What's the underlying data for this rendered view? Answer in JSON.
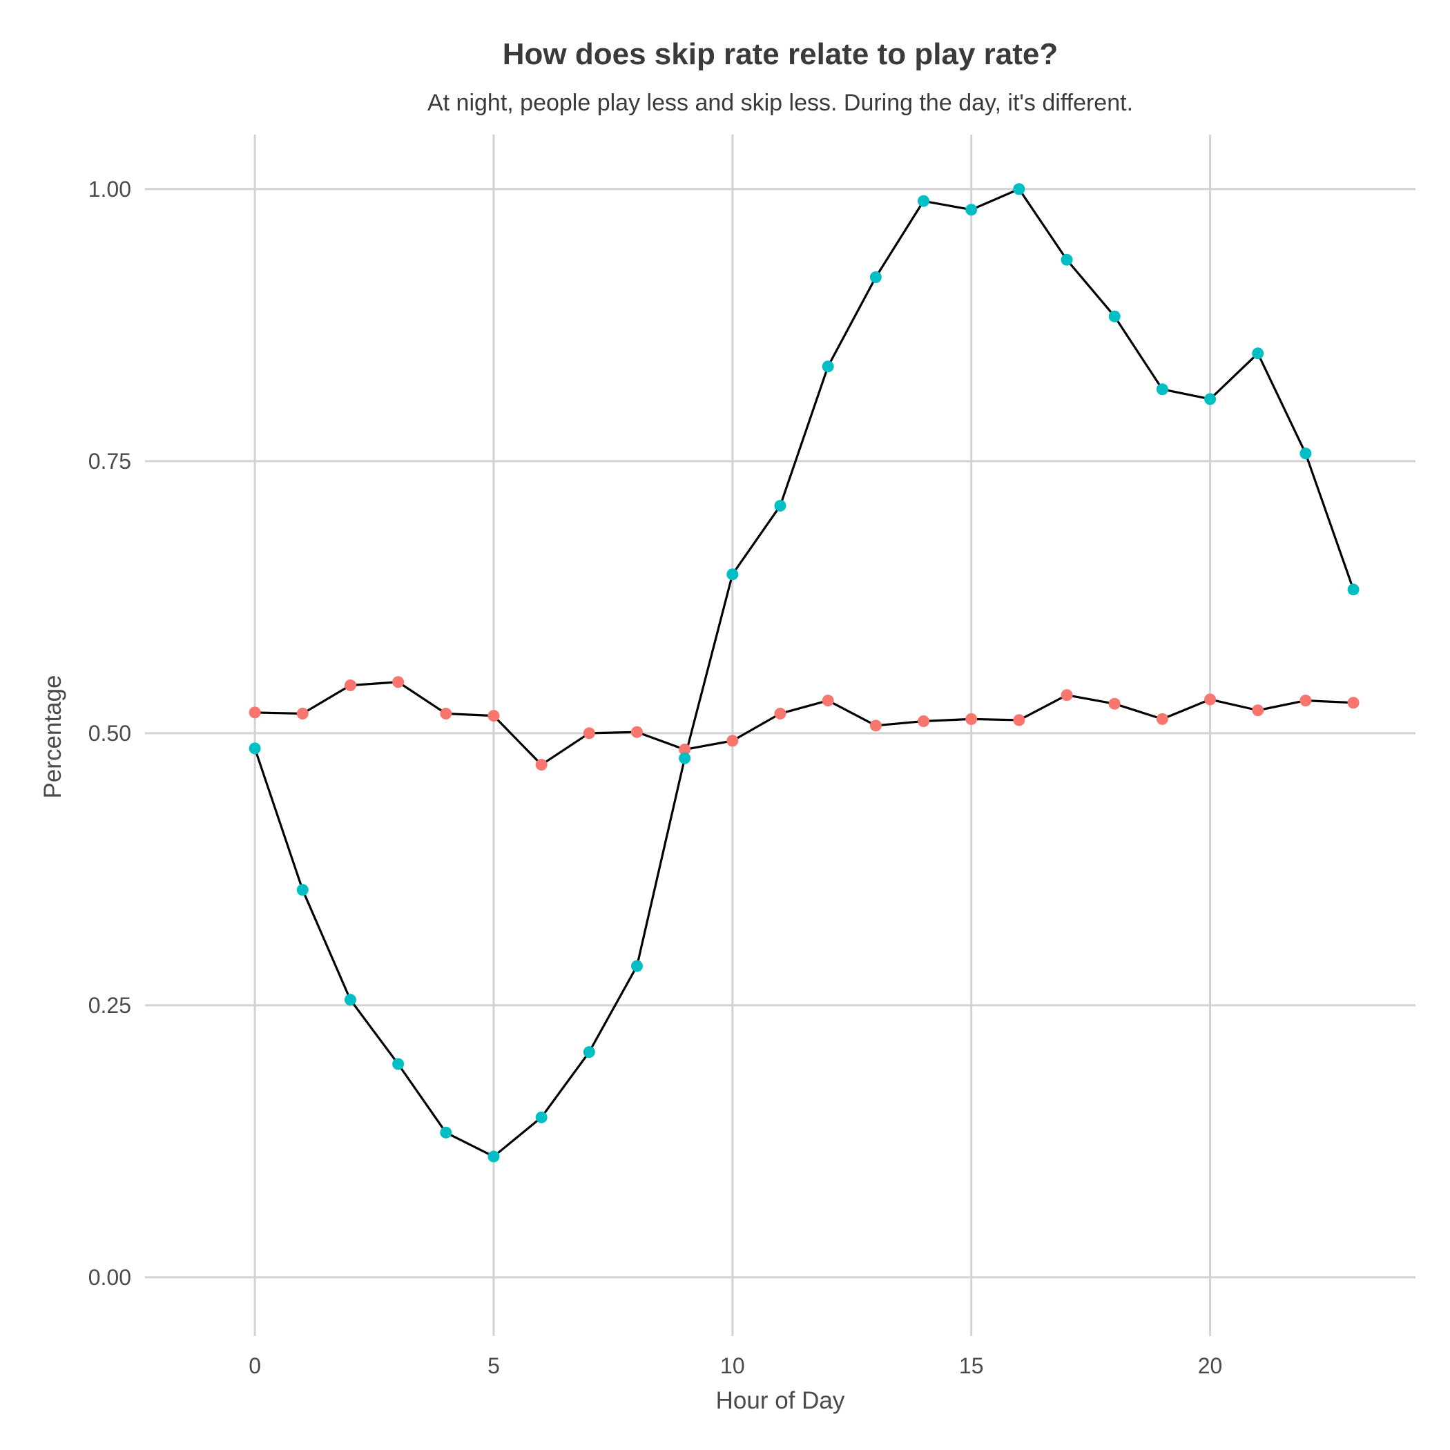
{
  "chart_data": {
    "type": "line",
    "title": "How does skip rate relate to play rate?",
    "subtitle": "At night, people play less and skip less. During the day, it's different.",
    "xlabel": "Hour of Day",
    "ylabel": "Percentage",
    "xlim": [
      -2.3,
      24.3
    ],
    "ylim": [
      -0.054,
      1.05
    ],
    "x_ticks": [
      0,
      5,
      10,
      15,
      20
    ],
    "x_tick_labels": [
      "0",
      "5",
      "10",
      "15",
      "20"
    ],
    "y_ticks": [
      0,
      0.25,
      0.5,
      0.75,
      1.0
    ],
    "y_tick_labels": [
      "0.00",
      "0.25",
      "0.50",
      "0.75",
      "1.00"
    ],
    "grid": true,
    "legend": "none",
    "x": [
      0,
      1,
      2,
      3,
      4,
      5,
      6,
      7,
      8,
      9,
      10,
      11,
      12,
      13,
      14,
      15,
      16,
      17,
      18,
      19,
      20,
      21,
      22,
      23
    ],
    "series": [
      {
        "color": "#F8766D",
        "values": [
          0.519,
          0.518,
          0.544,
          0.547,
          0.518,
          0.516,
          0.471,
          0.5,
          0.501,
          0.485,
          0.493,
          0.518,
          0.53,
          0.507,
          0.511,
          0.513,
          0.512,
          0.535,
          0.527,
          0.513,
          0.531,
          0.521,
          0.53,
          0.528
        ]
      },
      {
        "color": "#00BFC4",
        "values": [
          0.486,
          0.356,
          0.255,
          0.196,
          0.133,
          0.111,
          0.147,
          0.207,
          0.286,
          0.477,
          0.646,
          0.709,
          0.837,
          0.919,
          0.989,
          0.981,
          1.0,
          0.935,
          0.883,
          0.816,
          0.807,
          0.849,
          0.757,
          0.632
        ]
      }
    ]
  }
}
